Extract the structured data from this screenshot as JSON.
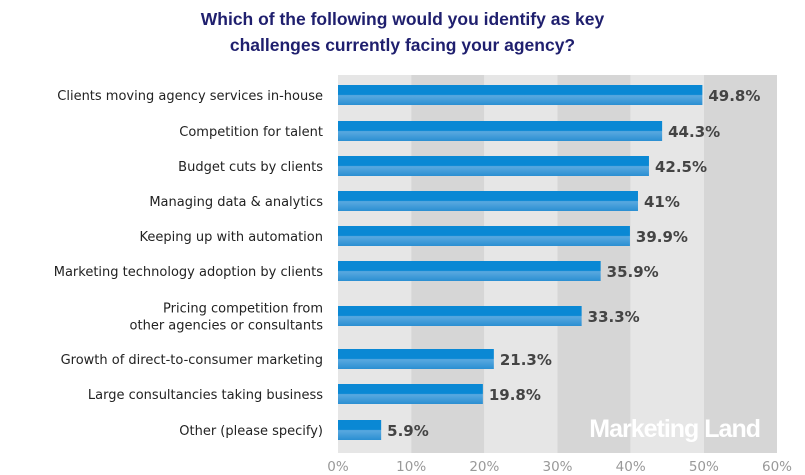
{
  "chart_data": {
    "type": "bar",
    "orientation": "horizontal",
    "title": "Which of the following would you identify as key challenges currently facing your agency?",
    "title_lines": [
      "Which of the following would you identify as key",
      "challenges currently facing your agency?"
    ],
    "categories": [
      "Clients moving agency services in-house",
      "Competition for talent",
      "Budget cuts by clients",
      "Managing data & analytics",
      "Keeping up with automation",
      "Marketing technology adoption by clients",
      "Pricing competition from other agencies or consultants",
      "Growth of direct-to-consumer marketing",
      "Large consultancies taking business",
      "Other (please specify)"
    ],
    "category_lines": [
      [
        "Clients moving agency services in-house"
      ],
      [
        "Competition for talent"
      ],
      [
        "Budget cuts by clients"
      ],
      [
        "Managing data & analytics"
      ],
      [
        "Keeping up with automation"
      ],
      [
        "Marketing technology adoption by clients"
      ],
      [
        "Pricing competition from",
        "other agencies or consultants"
      ],
      [
        "Growth of direct-to-consumer marketing"
      ],
      [
        "Large consultancies taking business"
      ],
      [
        "Other (please specify)"
      ]
    ],
    "values": [
      49.8,
      44.3,
      42.5,
      41,
      39.9,
      35.9,
      33.3,
      21.3,
      19.8,
      5.9
    ],
    "value_labels": [
      "49.8%",
      "44.3%",
      "42.5%",
      "41%",
      "39.9%",
      "35.9%",
      "33.3%",
      "21.3%",
      "19.8%",
      "5.9%"
    ],
    "xlabel": "",
    "ylabel": "",
    "xlim": [
      0,
      60
    ],
    "xticks": [
      0,
      10,
      20,
      30,
      40,
      50,
      60
    ],
    "xtick_labels": [
      "0%",
      "10%",
      "20%",
      "30%",
      "40%",
      "50%",
      "60%"
    ],
    "grid": "alternating vertical bands",
    "legend": "none",
    "watermark": "Marketing Land",
    "colors": {
      "bar": "#0a88d4",
      "bar_highlight": "#4fa3dc",
      "band_light": "#e6e6e6",
      "band_dark": "#d6d6d6",
      "title": "#1f1f6e",
      "value_label": "#444444"
    }
  }
}
